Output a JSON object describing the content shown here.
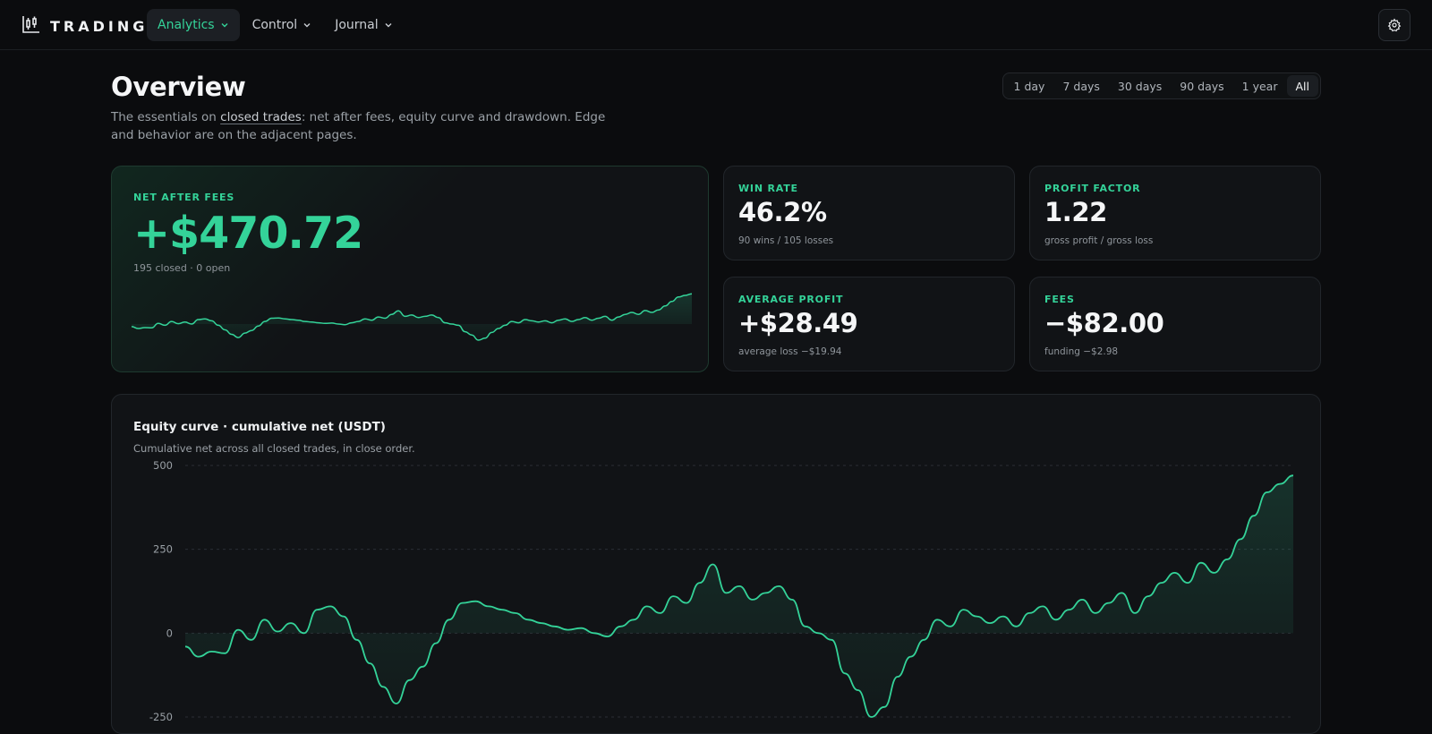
{
  "brand": {
    "name": "TRADING"
  },
  "nav": {
    "items": [
      {
        "label": "Analytics",
        "active": true
      },
      {
        "label": "Control",
        "active": false
      },
      {
        "label": "Journal",
        "active": false
      }
    ]
  },
  "header": {
    "title": "Overview",
    "desc_before": "The essentials on ",
    "desc_link": "closed trades",
    "desc_after": ": net after fees, equity curve and drawdown. Edge and behavior are on the adjacent pages."
  },
  "range": {
    "items": [
      "1 day",
      "7 days",
      "30 days",
      "90 days",
      "1 year",
      "All"
    ],
    "selected": "All"
  },
  "hero": {
    "label": "NET AFTER FEES",
    "value": "+$470.72",
    "sub": "195 closed · 0 open"
  },
  "stats": {
    "win_rate": {
      "label": "WIN RATE",
      "value": "46.2%",
      "sub": "90 wins / 105 losses"
    },
    "profit_factor": {
      "label": "PROFIT FACTOR",
      "value": "1.22",
      "sub": "gross profit / gross loss"
    },
    "average_profit": {
      "label": "AVERAGE PROFIT",
      "value": "+$28.49",
      "sub": "average loss −$19.94"
    },
    "fees": {
      "label": "FEES",
      "value": "−$82.00",
      "sub": "funding −$2.98"
    }
  },
  "equity": {
    "title": "Equity curve · cumulative net (USDT)",
    "subtitle": "Cumulative net across all closed trades, in close order."
  },
  "colors": {
    "accent": "#34d399",
    "background": "#0b0c0e",
    "card": "#111316"
  },
  "chart_data": {
    "type": "area",
    "title": "Equity curve · cumulative net (USDT)",
    "xlabel": "",
    "ylabel": "",
    "ylim": [
      -250,
      500
    ],
    "yticks": [
      500,
      250,
      0,
      -250
    ],
    "grid": true,
    "series": [
      {
        "values": [
          -40,
          -70,
          -55,
          -60,
          10,
          -20,
          40,
          5,
          30,
          0,
          70,
          80,
          50,
          -20,
          -90,
          -160,
          -210,
          -140,
          -100,
          -30,
          40,
          90,
          95,
          80,
          70,
          60,
          40,
          30,
          20,
          10,
          15,
          0,
          -10,
          20,
          40,
          80,
          60,
          110,
          90,
          150,
          205,
          120,
          140,
          100,
          120,
          140,
          100,
          20,
          0,
          -20,
          -120,
          -170,
          -250,
          -220,
          -130,
          -70,
          -20,
          40,
          20,
          70,
          50,
          30,
          50,
          20,
          60,
          80,
          40,
          70,
          100,
          60,
          90,
          120,
          60,
          110,
          150,
          180,
          150,
          210,
          180,
          220,
          280,
          350,
          420,
          445,
          470
        ]
      }
    ]
  }
}
